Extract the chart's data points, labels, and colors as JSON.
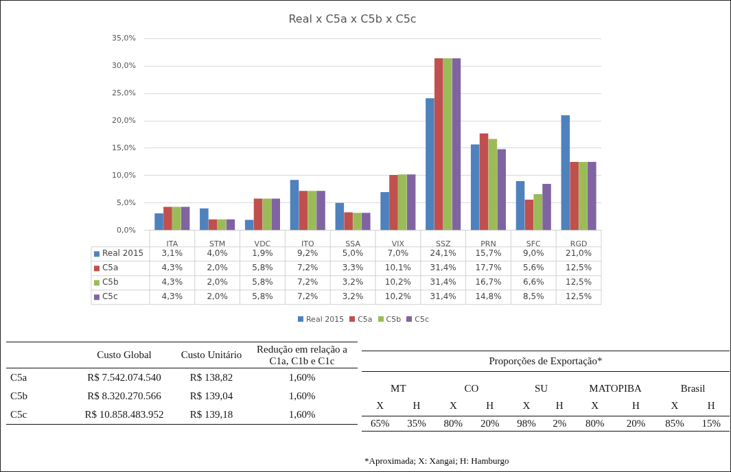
{
  "chart_data": [
    {
      "type": "bar",
      "title": "Real x C5a x C5b x C5c",
      "categories": [
        "ITA",
        "STM",
        "VDC",
        "ITQ",
        "SSA",
        "VIX",
        "SSZ",
        "PRN",
        "SFC",
        "RGD"
      ],
      "series": [
        {
          "name": "Real 2015",
          "color": "#4f81bd",
          "values": [
            3.1,
            4.0,
            1.9,
            9.2,
            5.0,
            7.0,
            24.1,
            15.7,
            9.0,
            21.0
          ],
          "value_labels": [
            "3,1%",
            "4,0%",
            "1,9%",
            "9,2%",
            "5,0%",
            "7,0%",
            "24,1%",
            "15,7%",
            "9,0%",
            "21,0%"
          ]
        },
        {
          "name": "C5a",
          "color": "#c0504d",
          "values": [
            4.3,
            2.0,
            5.8,
            7.2,
            3.3,
            10.1,
            31.4,
            17.7,
            5.6,
            12.5
          ],
          "value_labels": [
            "4,3%",
            "2,0%",
            "5,8%",
            "7,2%",
            "3,3%",
            "10,1%",
            "31,4%",
            "17,7%",
            "5,6%",
            "12,5%"
          ]
        },
        {
          "name": "C5b",
          "color": "#9bbb59",
          "values": [
            4.3,
            2.0,
            5.8,
            7.2,
            3.2,
            10.2,
            31.4,
            16.7,
            6.6,
            12.5
          ],
          "value_labels": [
            "4,3%",
            "2,0%",
            "5,8%",
            "7,2%",
            "3,2%",
            "10,2%",
            "31,4%",
            "16,7%",
            "6,6%",
            "12,5%"
          ]
        },
        {
          "name": "C5c",
          "color": "#8064a2",
          "values": [
            4.3,
            2.0,
            5.8,
            7.2,
            3.2,
            10.2,
            31.4,
            14.8,
            8.5,
            12.5
          ],
          "value_labels": [
            "4,3%",
            "2,0%",
            "5,8%",
            "7,2%",
            "3,2%",
            "10,2%",
            "31,4%",
            "14,8%",
            "8,5%",
            "12,5%"
          ]
        }
      ],
      "ylim": [
        0,
        35
      ],
      "yticks": [
        {
          "value": 0,
          "label": "0,0%"
        },
        {
          "value": 5,
          "label": "5,0%"
        },
        {
          "value": 10,
          "label": "10,0%"
        },
        {
          "value": 15,
          "label": "15,0%"
        },
        {
          "value": 20,
          "label": "20,0%"
        },
        {
          "value": 25,
          "label": "25,0%"
        },
        {
          "value": 30,
          "label": "30,0%"
        },
        {
          "value": 35,
          "label": "35,0%"
        }
      ],
      "grid": "y",
      "legend": "bottom"
    },
    {
      "type": "other",
      "annotations": [
        "Custo Global",
        "Custo Unitário",
        "Redução em relação a C1a, C1b e C1c",
        "C5a",
        "R$ 7.542.074.540",
        "R$ 138,82",
        "1,60%",
        "C5b",
        "R$ 8.320.270.566",
        "R$ 139,04",
        "1,60%",
        "C5c",
        "R$ 10.858.483.952",
        "R$ 139,18",
        "1,60%"
      ]
    },
    {
      "type": "other",
      "title": "Proporções de Exportação*",
      "annotations": [
        "MT",
        "CO",
        "SU",
        "MATOPIBA",
        "Brasil",
        "X",
        "H",
        "X",
        "H",
        "X",
        "H",
        "X",
        "H",
        "X",
        "H",
        "65%",
        "35%",
        "80%",
        "20%",
        "98%",
        "2%",
        "80%",
        "20%",
        "85%",
        "15%",
        "*Aproximada; X: Xangai; H: Hamburgo"
      ]
    }
  ]
}
